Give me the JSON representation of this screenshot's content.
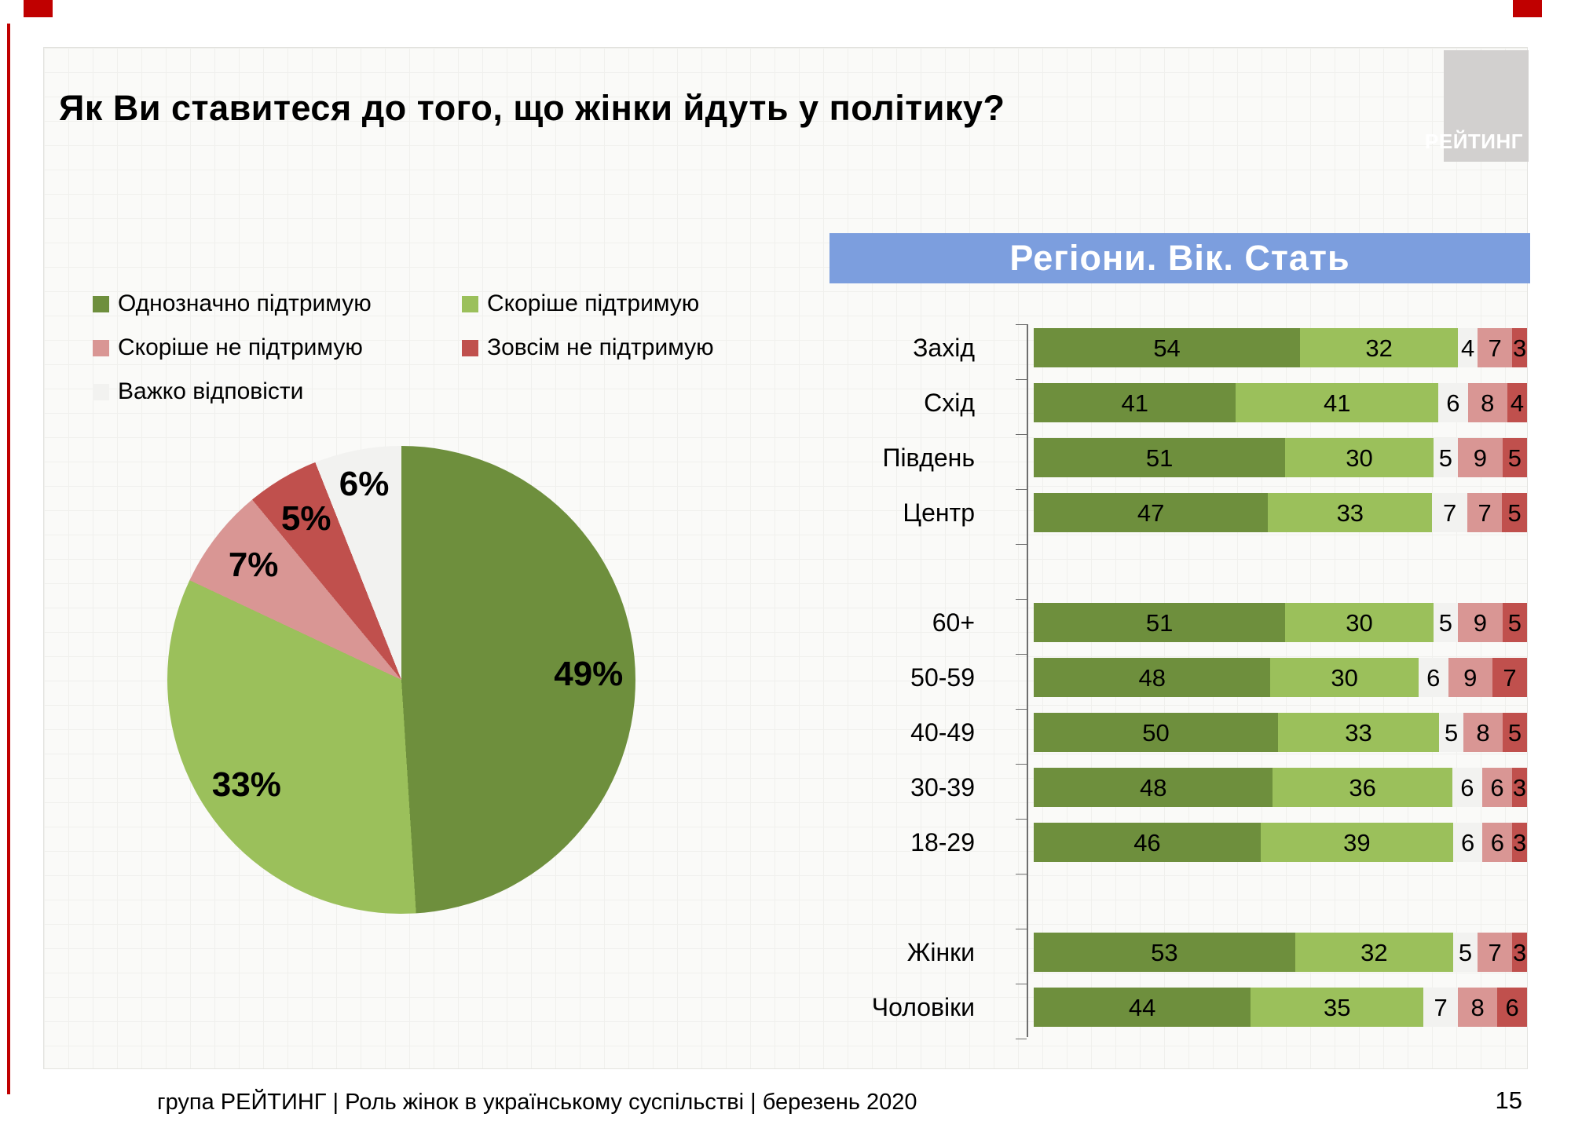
{
  "slide": {
    "title": "Як Ви ставитеся до того, що жінки йдуть у політику?",
    "footer": "група РЕЙТИНГ | Роль жінок в українському суспільстві | березень 2020",
    "page_number": "15",
    "logo_text": "РЕЙТИНГ",
    "accent_color": "#C00000"
  },
  "section_banner": {
    "label": "Регіони. Вік. Стать",
    "bg_color": "#7C9EDE",
    "text_color": "#FFFFFF"
  },
  "legend": {
    "items": [
      {
        "label": "Однозначно підтримую",
        "color": "#6E8F3D"
      },
      {
        "label": "Скоріше підтримую",
        "color": "#9BC05B"
      },
      {
        "label": "Скоріше не підтримую",
        "color": "#D99694"
      },
      {
        "label": "Зовсім не підтримую",
        "color": "#C0504D"
      },
      {
        "label": "Важко відповісти",
        "color": "#F2F2F0"
      }
    ]
  },
  "chart_data": [
    {
      "type": "pie",
      "title": "Як Ви ставитеся до того, що жінки йдуть у політику?",
      "labels": [
        "Однозначно підтримую",
        "Скоріше підтримую",
        "Скоріше не підтримую",
        "Зовсім не підтримую",
        "Важко відповісти"
      ],
      "values": [
        49,
        33,
        7,
        5,
        6
      ],
      "value_labels": [
        "49%",
        "33%",
        "7%",
        "5%",
        "6%"
      ],
      "colors": [
        "#6E8F3D",
        "#9BC05B",
        "#D99694",
        "#C0504D",
        "#F2F2F0"
      ],
      "start_angle_deg_from_top": 0,
      "direction": "clockwise",
      "legend_position": "top-left"
    },
    {
      "type": "bar",
      "orientation": "horizontal_stacked",
      "title": "Регіони. Вік. Стать",
      "series": [
        "Однозначно підтримую",
        "Скоріше підтримую",
        "Важко відповісти",
        "Скоріше не підтримую",
        "Зовсім не підтримую"
      ],
      "series_colors": [
        "#6E8F3D",
        "#9BC05B",
        "#F2F2F0",
        "#D99694",
        "#C0504D"
      ],
      "xlim": [
        0,
        100
      ],
      "groups": [
        {
          "name": "Регіони",
          "categories": [
            "Захід",
            "Схід",
            "Південь",
            "Центр"
          ],
          "rows": [
            [
              54,
              32,
              4,
              7,
              3
            ],
            [
              41,
              41,
              6,
              8,
              4
            ],
            [
              51,
              30,
              5,
              9,
              5
            ],
            [
              47,
              33,
              7,
              7,
              5
            ]
          ]
        },
        {
          "name": "Вік",
          "categories": [
            "60+",
            "50-59",
            "40-49",
            "30-39",
            "18-29"
          ],
          "rows": [
            [
              51,
              30,
              5,
              9,
              5
            ],
            [
              48,
              30,
              6,
              9,
              7
            ],
            [
              50,
              33,
              5,
              8,
              5
            ],
            [
              48,
              36,
              6,
              6,
              3
            ],
            [
              46,
              39,
              6,
              6,
              3
            ]
          ]
        },
        {
          "name": "Стать",
          "categories": [
            "Жінки",
            "Чоловіки"
          ],
          "rows": [
            [
              53,
              32,
              5,
              7,
              3
            ],
            [
              44,
              35,
              7,
              8,
              6
            ]
          ]
        }
      ]
    }
  ]
}
